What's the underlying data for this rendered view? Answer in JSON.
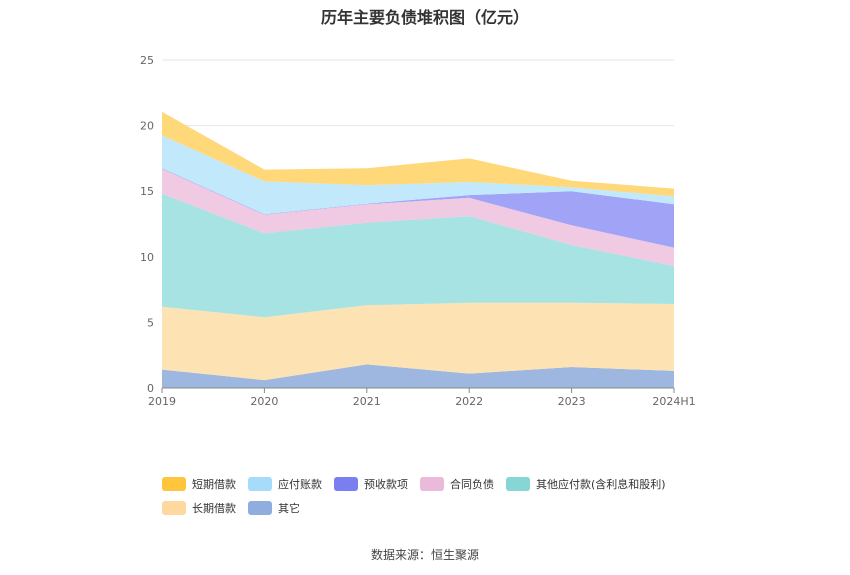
{
  "chart_data": {
    "type": "area",
    "title": "历年主要负债堆积图（亿元）",
    "categories": [
      "2019",
      "2020",
      "2021",
      "2022",
      "2023",
      "2024H1"
    ],
    "ylim": [
      0,
      25
    ],
    "yticks": [
      0,
      5,
      10,
      15,
      20,
      25
    ],
    "stacked": true,
    "grid": true,
    "legend_position": "bottom",
    "series": [
      {
        "name": "其它",
        "color": "#9eb7e0",
        "values": [
          1.4,
          0.6,
          1.8,
          1.1,
          1.6,
          1.3
        ]
      },
      {
        "name": "长期借款",
        "color": "#fde3b3",
        "values": [
          4.8,
          4.8,
          4.5,
          5.4,
          4.9,
          5.1
        ]
      },
      {
        "name": "其他应付款(含利息和股利)",
        "color": "#a8e3e3",
        "values": [
          8.6,
          6.4,
          6.3,
          6.6,
          4.4,
          2.9
        ]
      },
      {
        "name": "合同负债",
        "color": "#f0c9e2",
        "values": [
          1.9,
          1.4,
          1.4,
          1.4,
          1.5,
          1.4
        ]
      },
      {
        "name": "预收款项",
        "color": "#a1a3f7",
        "values": [
          0.05,
          0.05,
          0.05,
          0.2,
          2.6,
          3.3
        ]
      },
      {
        "name": "应付账款",
        "color": "#c2e8fb",
        "values": [
          2.5,
          2.5,
          1.4,
          1.0,
          0.3,
          0.6
        ]
      },
      {
        "name": "短期借款",
        "color": "#ffd87a",
        "values": [
          1.8,
          0.9,
          1.3,
          1.8,
          0.5,
          0.6
        ]
      }
    ]
  },
  "legend": {
    "row1": [
      {
        "label": "短期借款",
        "color": "#ffc53d"
      },
      {
        "label": "应付账款",
        "color": "#a6dcfb"
      },
      {
        "label": "预收款项",
        "color": "#7b7ef0"
      },
      {
        "label": "合同负债",
        "color": "#ebb9da"
      },
      {
        "label": "其他应付款(含利息和股利)",
        "color": "#86d6d6"
      }
    ],
    "row2": [
      {
        "label": "长期借款",
        "color": "#fdd9a0"
      },
      {
        "label": "其它",
        "color": "#8fadde"
      }
    ]
  },
  "source": "数据来源：恒生聚源"
}
